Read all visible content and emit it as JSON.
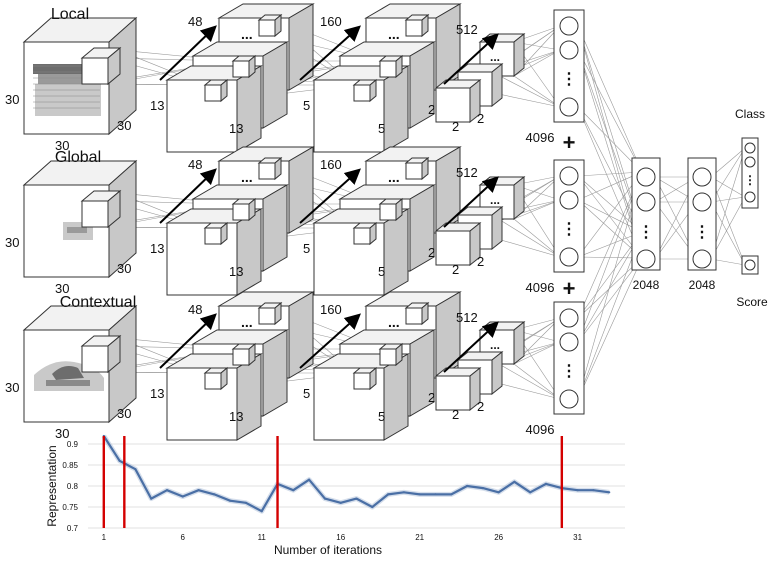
{
  "branches": [
    {
      "title": "Local",
      "input_left": "30",
      "input_bottom": "30",
      "input_right": "30"
    },
    {
      "title": "Global",
      "input_left": "30",
      "input_bottom": "30",
      "input_right": "30"
    },
    {
      "title": "Contextual",
      "input_left": "30",
      "input_bottom": "30",
      "input_right": "30"
    }
  ],
  "conv": [
    {
      "depth": "48",
      "bottom": "13",
      "side": "13"
    },
    {
      "depth": "160",
      "bottom": "5",
      "side": "5"
    },
    {
      "depth": "512",
      "bottom": "2",
      "side": "2"
    }
  ],
  "dots": "...",
  "vdots": "⋮",
  "fc_label": "4096",
  "plus": "+",
  "fc2_label": "2048",
  "fc3_label": "2048",
  "class_label": "Class",
  "score_label": "Score",
  "chart_data": {
    "type": "line",
    "title": "",
    "xlabel": "Number of iterations",
    "ylabel": "Representation",
    "x": [
      1,
      2,
      3,
      4,
      5,
      6,
      7,
      8,
      9,
      10,
      11,
      12,
      13,
      14,
      15,
      16,
      17,
      18,
      19,
      20,
      21,
      22,
      23,
      24,
      25,
      26,
      27,
      28,
      29,
      30,
      31,
      32,
      33
    ],
    "series": [
      {
        "values": [
          0.95,
          0.86,
          0.84,
          0.77,
          0.79,
          0.775,
          0.79,
          0.78,
          0.765,
          0.76,
          0.74,
          0.805,
          0.79,
          0.815,
          0.77,
          0.76,
          0.77,
          0.75,
          0.78,
          0.785,
          0.78,
          0.78,
          0.78,
          0.8,
          0.795,
          0.785,
          0.81,
          0.785,
          0.805,
          0.795,
          0.79,
          0.79,
          0.785
        ],
        "color": "#4a6fa5"
      }
    ],
    "xticks": [
      1,
      6,
      11,
      16,
      21,
      26,
      31
    ],
    "yticks": [
      0.7,
      0.75,
      0.8,
      0.85,
      0.9
    ],
    "ytick_labels": [
      "0.7",
      "0.75",
      "0.8",
      "0.85",
      "0.9"
    ],
    "xlim": [
      0,
      34
    ],
    "ylim": [
      0.7,
      0.9
    ],
    "markers": [
      {
        "x": 1
      },
      {
        "x": 2.3
      },
      {
        "x": 12
      },
      {
        "x": 30
      }
    ],
    "marker_color": "#d40000",
    "grid": true
  }
}
